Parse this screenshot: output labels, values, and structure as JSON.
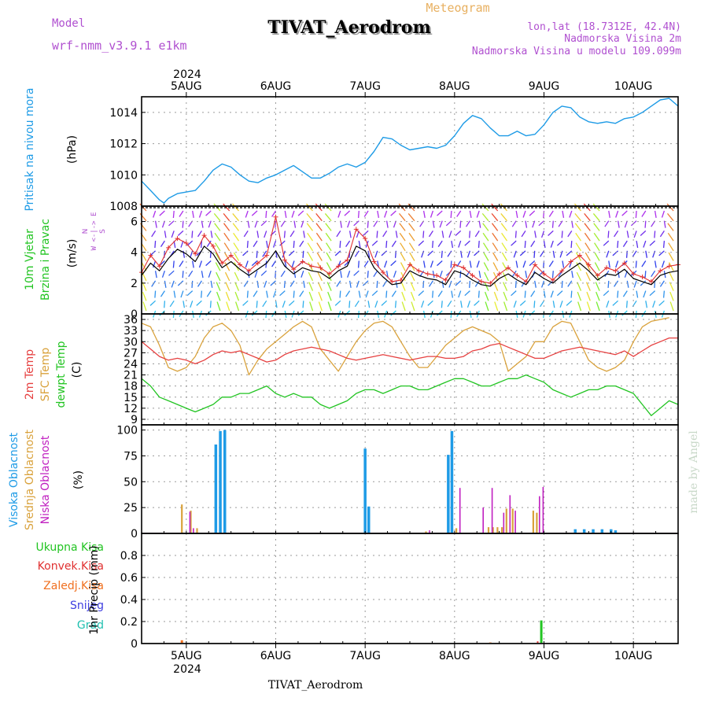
{
  "header": {
    "model_label": "Model",
    "model_value": "wrf-nmm_v3.9.1 e1km",
    "meteogram_label": "Meteogram",
    "station_title": "TIVAT_Aerodrom",
    "location_line": "lon,lat (18.7312E, 42.4N)",
    "elevation_line": "Nadmorska Visina 2m",
    "model_elevation_line": "Nadmorska Visina u modelu 109.099m",
    "footer_station": "TIVAT_Aerodrom",
    "credit": "made by Angel"
  },
  "colors": {
    "pressure": "#1e9be6",
    "wind_speed": "#000000",
    "wind_gust": "#e03030",
    "temp_2m": "#e64040",
    "temp_sfc": "#d9a23c",
    "dewpoint": "#22c422",
    "cloud_high": "#1e9be6",
    "cloud_mid": "#d9a23c",
    "cloud_low": "#c020c0",
    "precip_total": "#22c422",
    "precip_conv": "#e03030",
    "precip_frz": "#f07020",
    "snow": "#4040e0",
    "hail": "#20c0b0",
    "header_purple": "#b050d0",
    "header_orange": "#e8b060"
  },
  "time_axis": {
    "year": "2024",
    "days": [
      "5AUG",
      "6AUG",
      "7AUG",
      "8AUG",
      "9AUG",
      "10AUG"
    ],
    "range_days": [
      -0.5,
      5.5
    ]
  },
  "chart_data": [
    {
      "type": "line",
      "id": "pressure",
      "ylabel_lines": [
        "Pritisak na nivou mora"
      ],
      "unit": "(hPa)",
      "ylim": [
        1008,
        1015
      ],
      "yticks": [
        "1008",
        "1010",
        "1012",
        "1014"
      ],
      "grid": true,
      "x_days": [
        -0.5,
        -0.4,
        -0.3,
        -0.25,
        -0.2,
        -0.1,
        0,
        0.1,
        0.2,
        0.3,
        0.4,
        0.5,
        0.6,
        0.7,
        0.8,
        0.9,
        1,
        1.1,
        1.2,
        1.3,
        1.4,
        1.5,
        1.6,
        1.7,
        1.8,
        1.9,
        2,
        2.1,
        2.2,
        2.3,
        2.4,
        2.5,
        2.6,
        2.7,
        2.8,
        2.9,
        3,
        3.1,
        3.2,
        3.3,
        3.4,
        3.5,
        3.6,
        3.7,
        3.8,
        3.9,
        4,
        4.1,
        4.2,
        4.3,
        4.4,
        4.5,
        4.6,
        4.7,
        4.8,
        4.9,
        5,
        5.1,
        5.2,
        5.3,
        5.4,
        5.5
      ],
      "series": [
        {
          "values": [
            1009.6,
            1009.0,
            1008.4,
            1008.2,
            1008.5,
            1008.8,
            1008.9,
            1009.0,
            1009.6,
            1010.3,
            1010.7,
            1010.5,
            1010.0,
            1009.6,
            1009.5,
            1009.8,
            1010.0,
            1010.3,
            1010.6,
            1010.2,
            1009.8,
            1009.8,
            1010.1,
            1010.5,
            1010.7,
            1010.5,
            1010.8,
            1011.5,
            1012.4,
            1012.3,
            1011.9,
            1011.6,
            1011.7,
            1011.8,
            1011.7,
            1011.9,
            1012.5,
            1013.3,
            1013.8,
            1013.6,
            1013.0,
            1012.5,
            1012.5,
            1012.8,
            1012.5,
            1012.6,
            1013.2,
            1014.0,
            1014.4,
            1014.3,
            1013.7,
            1013.4,
            1013.3,
            1013.4,
            1013.3,
            1013.6,
            1013.7,
            1014.0,
            1014.4,
            1014.8,
            1014.9,
            1014.4
          ]
        }
      ]
    },
    {
      "type": "line",
      "id": "wind",
      "ylabel_lines": [
        "10m Vjetar",
        "Brzina i Pravac"
      ],
      "unit": "(m/s)",
      "compass_lines": [
        "N",
        "W <-|-> E",
        "S"
      ],
      "ylim": [
        0,
        7
      ],
      "yticks": [
        "0",
        "2",
        "4",
        "6"
      ],
      "grid": true,
      "x_days": [
        -0.5,
        -0.4,
        -0.3,
        -0.2,
        -0.1,
        0,
        0.1,
        0.2,
        0.3,
        0.4,
        0.5,
        0.6,
        0.7,
        0.8,
        0.9,
        1,
        1.1,
        1.2,
        1.3,
        1.4,
        1.5,
        1.6,
        1.7,
        1.8,
        1.9,
        2,
        2.1,
        2.2,
        2.3,
        2.4,
        2.5,
        2.6,
        2.7,
        2.8,
        2.9,
        3,
        3.1,
        3.2,
        3.3,
        3.4,
        3.5,
        3.6,
        3.7,
        3.8,
        3.9,
        4,
        4.1,
        4.2,
        4.3,
        4.4,
        4.5,
        4.6,
        4.7,
        4.8,
        4.9,
        5,
        5.1,
        5.2,
        5.3,
        5.4,
        5.5
      ],
      "series": [
        {
          "values": [
            2.5,
            3.3,
            2.8,
            3.6,
            4.2,
            3.9,
            3.4,
            4.4,
            3.9,
            3.0,
            3.4,
            2.9,
            2.5,
            2.9,
            3.3,
            4.1,
            3.1,
            2.6,
            3.0,
            2.8,
            2.7,
            2.3,
            2.8,
            3.1,
            4.4,
            4.1,
            3.0,
            2.4,
            1.9,
            2.0,
            2.8,
            2.5,
            2.3,
            2.2,
            1.9,
            2.8,
            2.6,
            2.2,
            1.9,
            1.8,
            2.3,
            2.6,
            2.2,
            1.9,
            2.7,
            2.3,
            2.0,
            2.5,
            2.9,
            3.3,
            2.8,
            2.2,
            2.6,
            2.5,
            2.9,
            2.3,
            2.1,
            1.9,
            2.5,
            2.7,
            2.8
          ]
        },
        {
          "values": [
            2.7,
            3.8,
            3.1,
            4.3,
            4.9,
            4.6,
            3.9,
            5.1,
            4.4,
            3.3,
            3.8,
            3.2,
            2.8,
            3.3,
            3.8,
            6.3,
            3.5,
            2.9,
            3.4,
            3.1,
            3.0,
            2.6,
            3.1,
            3.5,
            5.5,
            4.9,
            3.4,
            2.7,
            2.1,
            2.2,
            3.2,
            2.8,
            2.6,
            2.5,
            2.2,
            3.2,
            3.0,
            2.5,
            2.1,
            2.0,
            2.6,
            3.0,
            2.5,
            2.1,
            3.2,
            2.6,
            2.2,
            2.8,
            3.4,
            3.8,
            3.2,
            2.5,
            3.0,
            2.8,
            3.3,
            2.6,
            2.4,
            2.1,
            2.8,
            3.1,
            3.2
          ]
        }
      ]
    },
    {
      "type": "line",
      "id": "temperature",
      "ylabel_lines": [
        "2m Temp",
        "SFC Temp",
        "dewpt Temp"
      ],
      "unit": "(C)",
      "ylim": [
        7.5,
        37.5
      ],
      "yticks": [
        "9",
        "12",
        "15",
        "18",
        "21",
        "24",
        "27",
        "30",
        "33",
        "36"
      ],
      "grid": true,
      "x_days": [
        -0.5,
        -0.4,
        -0.3,
        -0.2,
        -0.1,
        0,
        0.1,
        0.2,
        0.3,
        0.4,
        0.5,
        0.6,
        0.7,
        0.8,
        0.9,
        1,
        1.1,
        1.2,
        1.3,
        1.4,
        1.5,
        1.6,
        1.7,
        1.8,
        1.9,
        2,
        2.1,
        2.2,
        2.3,
        2.4,
        2.5,
        2.6,
        2.7,
        2.8,
        2.9,
        3,
        3.1,
        3.2,
        3.3,
        3.4,
        3.5,
        3.6,
        3.7,
        3.8,
        3.9,
        4,
        4.1,
        4.2,
        4.3,
        4.4,
        4.5,
        4.6,
        4.7,
        4.8,
        4.9,
        5,
        5.1,
        5.2,
        5.3,
        5.4,
        5.5
      ],
      "series": [
        {
          "values": [
            30,
            28,
            26,
            25,
            25.5,
            25,
            24,
            25,
            26.5,
            27.5,
            27,
            27.5,
            26.5,
            25.5,
            24.5,
            25,
            26.5,
            27.5,
            28,
            28.5,
            28,
            27.5,
            26.5,
            25.5,
            25,
            25.5,
            26,
            26.5,
            26,
            25.5,
            25,
            25.5,
            26,
            26,
            25.5,
            25.5,
            26,
            27.5,
            28,
            29,
            29.5,
            28.5,
            27.5,
            26.5,
            25.5,
            25.5,
            26.5,
            27.5,
            28,
            28.5,
            28,
            27.5,
            27,
            26.5,
            27.5,
            26,
            27.5,
            29,
            30,
            31,
            31
          ]
        },
        {
          "values": [
            35,
            34,
            29,
            23,
            22,
            23,
            26,
            31,
            34,
            35,
            33,
            29,
            21,
            25,
            28,
            30,
            32,
            34,
            35.5,
            34,
            28,
            25,
            22,
            26,
            30,
            33,
            35,
            35.5,
            34,
            30,
            26,
            23,
            23,
            26,
            29,
            31,
            33,
            34,
            33,
            32,
            30,
            22,
            24,
            26,
            30,
            30,
            34,
            35.5,
            35,
            30,
            25,
            23,
            22,
            23,
            25,
            30,
            34,
            35.5,
            36,
            36.5
          ]
        },
        {
          "values": [
            20,
            18,
            15,
            14,
            13,
            12,
            11,
            12,
            13,
            15,
            15,
            16,
            16,
            17,
            18,
            16,
            15,
            16,
            15,
            15,
            13,
            12,
            13,
            14,
            16,
            17,
            17,
            16,
            17,
            18,
            18,
            17,
            17,
            18,
            19,
            20,
            20,
            19,
            18,
            18,
            19,
            20,
            20,
            21,
            20,
            19,
            17,
            16,
            15,
            16,
            17,
            17,
            18,
            18,
            17,
            16,
            13,
            10,
            12,
            14,
            13
          ]
        }
      ]
    },
    {
      "type": "bar",
      "id": "clouds",
      "ylabel_lines": [
        "Visoka Oblacnost",
        "Srednja Oblacnost",
        "Niska Oblacnost"
      ],
      "unit": "(%)",
      "ylim": [
        0,
        105
      ],
      "yticks": [
        "0",
        "25",
        "50",
        "75",
        "100"
      ],
      "grid": true,
      "series": [
        {
          "name": "Visoka Oblacnost",
          "x_days": [
            0.33,
            0.38,
            0.43,
            2.0,
            2.04,
            2.93,
            2.97,
            4.35,
            4.45,
            4.55,
            4.65,
            4.75,
            4.8
          ],
          "values": [
            86,
            99,
            100,
            82,
            26,
            76,
            99,
            4,
            4,
            4,
            4,
            4,
            3
          ]
        },
        {
          "name": "Srednja Oblacnost",
          "x_days": [
            -0.05,
            0.05,
            0.12,
            2.68,
            3.02,
            3.38,
            3.43,
            3.48,
            3.53,
            3.58,
            3.65,
            3.88,
            3.92
          ],
          "values": [
            28,
            22,
            5,
            2,
            5,
            6,
            6,
            6,
            6,
            24,
            24,
            22,
            20
          ]
        },
        {
          "name": "Niska Oblacnost",
          "x_days": [
            0.04,
            0.08,
            2.72,
            3.06,
            3.32,
            3.42,
            3.55,
            3.62,
            3.68,
            3.95,
            3.99
          ],
          "values": [
            21,
            5,
            3,
            44,
            25,
            44,
            20,
            37,
            22,
            36,
            45
          ]
        }
      ]
    },
    {
      "type": "bar",
      "id": "precip",
      "ylabel_lines": [
        "1hr Precip (mm)"
      ],
      "legend_lines": [
        "Ukupna Kisa",
        "Konvek.Kisa",
        "Zaledj.Kisa",
        "Snijeg",
        "Grad"
      ],
      "ylim": [
        0,
        1.0
      ],
      "yticks": [
        "0",
        "0.2",
        "0.4",
        "0.6",
        "0.8"
      ],
      "grid": true,
      "series": [
        {
          "name": "Ukupna Kisa",
          "x_days": [
            3.97
          ],
          "values": [
            0.21
          ]
        },
        {
          "name": "Konvek.Kisa",
          "x_days": [
            3.93
          ],
          "values": [
            0.02
          ]
        },
        {
          "name": "Zaledj.Kisa",
          "x_days": [
            -0.05,
            3.4
          ],
          "values": [
            0.03,
            0.01
          ]
        }
      ]
    }
  ]
}
